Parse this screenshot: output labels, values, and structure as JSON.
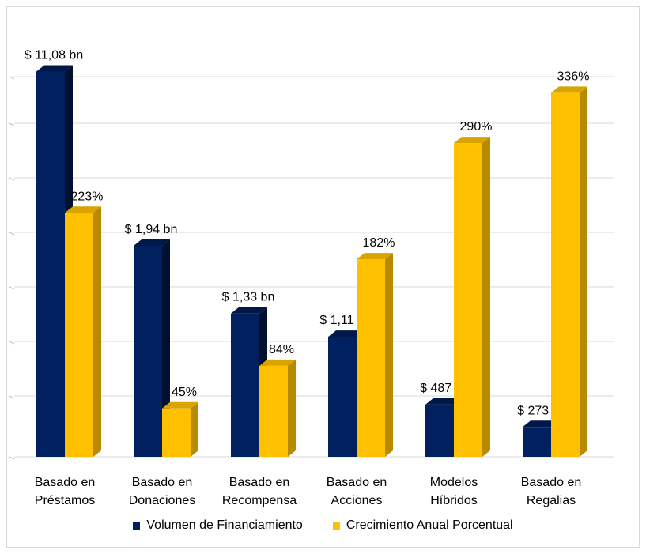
{
  "chart_data": {
    "type": "bar",
    "style": "3d-clustered-column",
    "categories": [
      [
        "Basado en",
        "Préstamos"
      ],
      [
        "Basado en",
        "Donaciones"
      ],
      [
        "Basado en",
        "Recompensa"
      ],
      [
        "Basado en",
        "Acciones"
      ],
      [
        "Modelos",
        "Híbridos"
      ],
      [
        "Basado en",
        "Regalias"
      ]
    ],
    "series": [
      {
        "name": "Volumen de Financiamiento",
        "color": "#002060",
        "values": [
          11080,
          1940,
          1330,
          1110,
          487,
          273
        ],
        "unit": "USD millions",
        "labels": [
          "$ 11,08 bn",
          "$ 1,94 bn",
          "$ 1,33 bn",
          "$ 1,11 bn",
          "$ 487 m",
          "$ 273 m"
        ],
        "plot_heights": [
          0.995,
          0.545,
          0.37,
          0.31,
          0.135,
          0.077
        ]
      },
      {
        "name": "Crecimiento Anual Porcentual",
        "color": "#FFC000",
        "values": [
          223,
          45,
          84,
          182,
          290,
          336
        ],
        "unit": "percent",
        "labels": [
          "223%",
          "45%",
          "84%",
          "182%",
          "290%",
          "336%"
        ],
        "plot_heights": [
          0.63,
          0.125,
          0.235,
          0.51,
          0.81,
          0.94
        ]
      }
    ],
    "value_axis_note": "axis tick labels not shown; bars scaled independently per series",
    "gridlines": 7,
    "legend_position": "bottom",
    "title": "",
    "xlabel": "",
    "ylabel": ""
  }
}
